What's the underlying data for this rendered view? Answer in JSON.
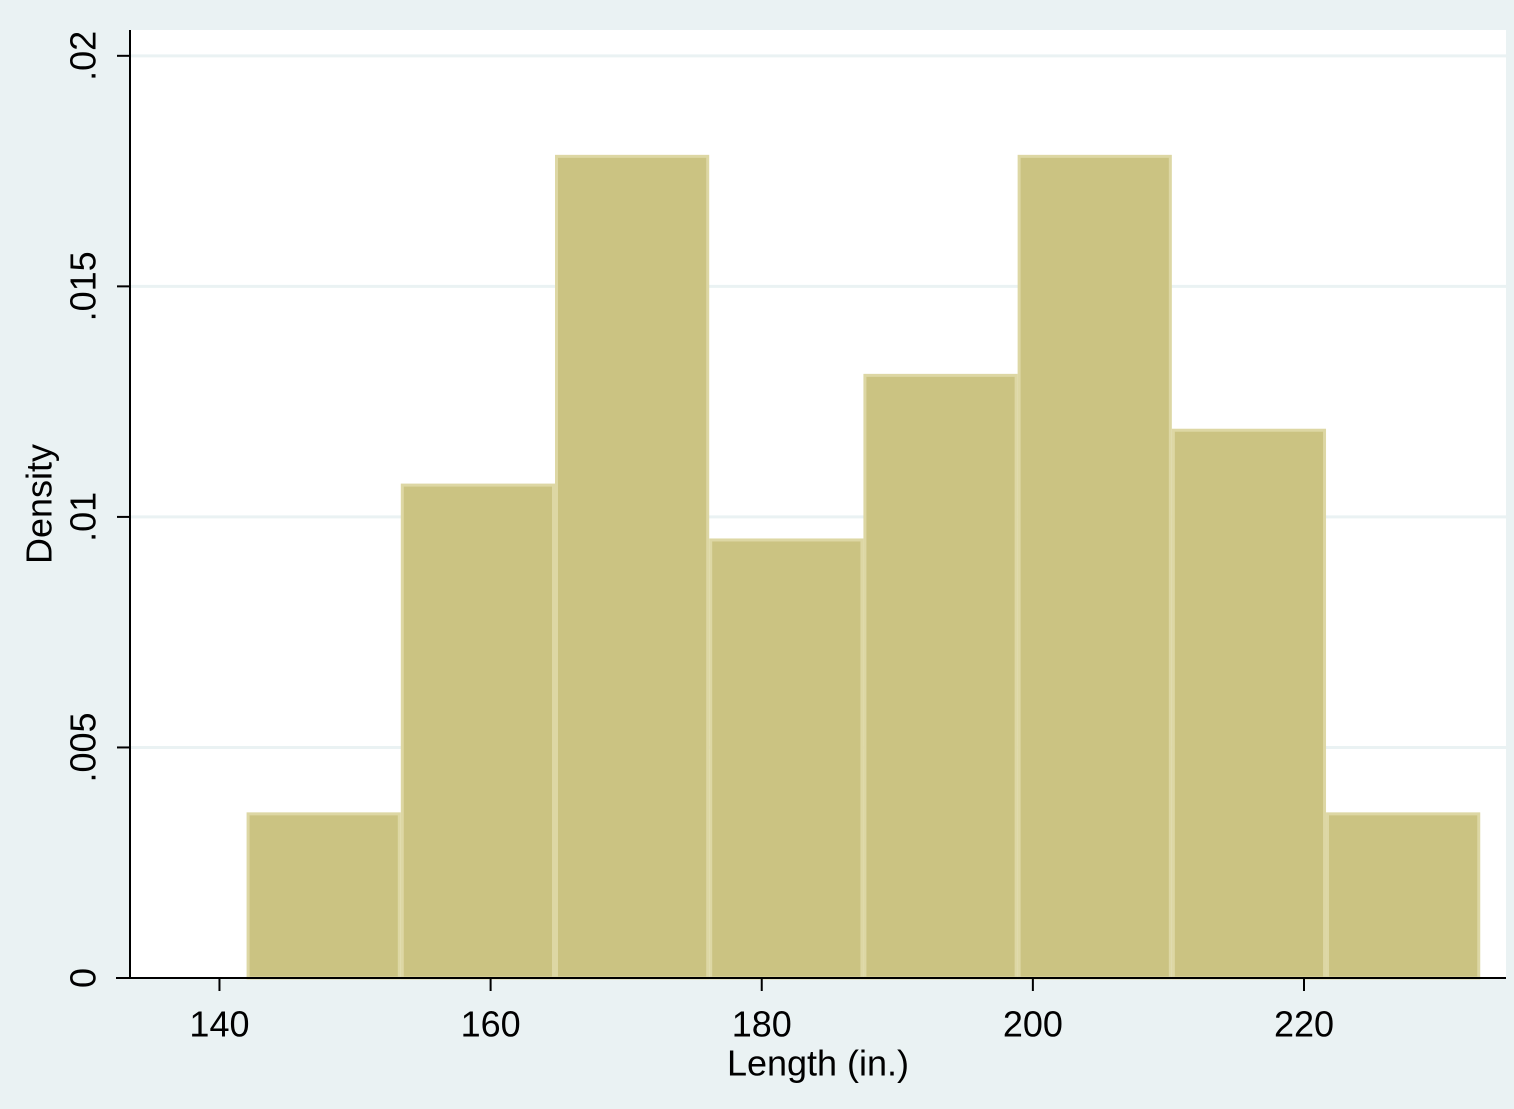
{
  "chart_data": {
    "type": "histogram",
    "x_label": "Length (in.)",
    "y_label": "Density",
    "bins": [
      142,
      153.375,
      164.75,
      176.125,
      187.5,
      198.875,
      210.25,
      221.625,
      233
    ],
    "values": [
      0.00356,
      0.01069,
      0.01782,
      0.0095,
      0.01307,
      0.01782,
      0.01188,
      0.00356
    ],
    "color": "#cbc382",
    "edge_color": "#ddd7a4",
    "xlim": [
      133.4,
      234.9
    ],
    "xticks": [
      140,
      160,
      180,
      200,
      220
    ],
    "ylim": [
      0,
      0.02056
    ],
    "yticks": [
      0,
      {
        "value": 0.005,
        "label": ".005"
      },
      {
        "value": 0.01,
        "label": ".01"
      },
      {
        "value": 0.015,
        "label": ".015"
      },
      {
        "value": 0.02,
        "label": ".02"
      }
    ],
    "grid": true
  }
}
